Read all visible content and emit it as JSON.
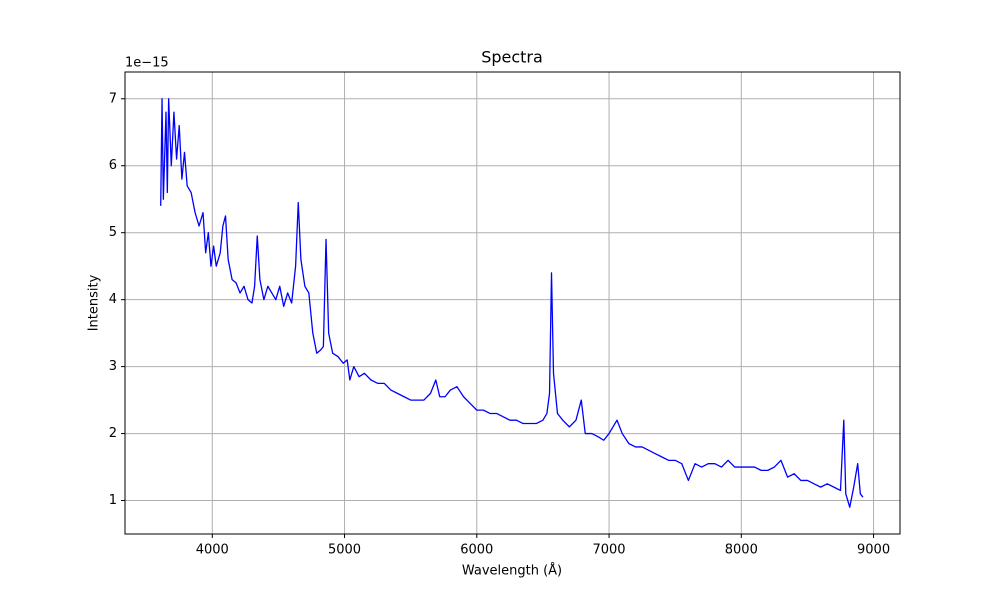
{
  "chart_data": {
    "type": "line",
    "title": "Spectra",
    "xlabel": "Wavelength (Å)",
    "ylabel": "Intensity",
    "offset_label": "1e−15",
    "color": "#0000ff",
    "grid": true,
    "xlim": [
      3340,
      9200
    ],
    "ylim": [
      0.5,
      7.4
    ],
    "xticks": [
      4000,
      5000,
      6000,
      7000,
      8000,
      9000
    ],
    "yticks": [
      1,
      2,
      3,
      4,
      5,
      6,
      7
    ],
    "x": [
      3610,
      3620,
      3630,
      3650,
      3660,
      3670,
      3690,
      3710,
      3730,
      3750,
      3770,
      3790,
      3810,
      3840,
      3870,
      3900,
      3930,
      3950,
      3970,
      3990,
      4010,
      4030,
      4060,
      4080,
      4100,
      4120,
      4150,
      4180,
      4210,
      4240,
      4270,
      4300,
      4320,
      4340,
      4360,
      4390,
      4420,
      4450,
      4480,
      4510,
      4540,
      4570,
      4600,
      4630,
      4650,
      4670,
      4700,
      4730,
      4760,
      4790,
      4820,
      4840,
      4860,
      4880,
      4910,
      4950,
      4990,
      5020,
      5040,
      5070,
      5110,
      5150,
      5200,
      5250,
      5300,
      5350,
      5400,
      5450,
      5500,
      5550,
      5600,
      5650,
      5690,
      5720,
      5760,
      5800,
      5850,
      5900,
      5950,
      6000,
      6050,
      6100,
      6150,
      6200,
      6250,
      6300,
      6350,
      6400,
      6450,
      6500,
      6530,
      6550,
      6565,
      6580,
      6610,
      6650,
      6700,
      6750,
      6790,
      6820,
      6870,
      6920,
      6960,
      7000,
      7060,
      7100,
      7150,
      7200,
      7250,
      7300,
      7350,
      7400,
      7450,
      7500,
      7550,
      7600,
      7650,
      7700,
      7750,
      7800,
      7850,
      7900,
      7950,
      8000,
      8050,
      8100,
      8150,
      8200,
      8250,
      8300,
      8350,
      8400,
      8450,
      8500,
      8550,
      8600,
      8650,
      8700,
      8750,
      8775,
      8790,
      8820,
      8850,
      8880,
      8900,
      8920
    ],
    "values": [
      5.4,
      7.0,
      5.5,
      6.8,
      5.6,
      7.0,
      6.0,
      6.8,
      6.1,
      6.6,
      5.8,
      6.2,
      5.7,
      5.6,
      5.3,
      5.1,
      5.3,
      4.7,
      5.0,
      4.5,
      4.8,
      4.5,
      4.7,
      5.1,
      5.25,
      4.6,
      4.3,
      4.25,
      4.1,
      4.2,
      4.0,
      3.95,
      4.2,
      4.95,
      4.3,
      4.0,
      4.2,
      4.1,
      4.0,
      4.2,
      3.9,
      4.1,
      3.95,
      4.5,
      5.45,
      4.6,
      4.2,
      4.1,
      3.5,
      3.2,
      3.25,
      3.3,
      4.9,
      3.5,
      3.2,
      3.15,
      3.05,
      3.1,
      2.8,
      3.0,
      2.85,
      2.9,
      2.8,
      2.75,
      2.75,
      2.65,
      2.6,
      2.55,
      2.5,
      2.5,
      2.5,
      2.6,
      2.8,
      2.55,
      2.55,
      2.65,
      2.7,
      2.55,
      2.45,
      2.35,
      2.35,
      2.3,
      2.3,
      2.25,
      2.2,
      2.2,
      2.15,
      2.15,
      2.15,
      2.2,
      2.3,
      2.6,
      4.4,
      2.9,
      2.3,
      2.2,
      2.1,
      2.2,
      2.5,
      2.0,
      2.0,
      1.95,
      1.9,
      2.0,
      2.2,
      2.0,
      1.85,
      1.8,
      1.8,
      1.75,
      1.7,
      1.65,
      1.6,
      1.6,
      1.55,
      1.3,
      1.55,
      1.5,
      1.55,
      1.55,
      1.5,
      1.6,
      1.5,
      1.5,
      1.5,
      1.5,
      1.45,
      1.45,
      1.5,
      1.6,
      1.35,
      1.4,
      1.3,
      1.3,
      1.25,
      1.2,
      1.25,
      1.2,
      1.15,
      2.2,
      1.1,
      0.9,
      1.2,
      1.55,
      1.1,
      1.05
    ]
  }
}
